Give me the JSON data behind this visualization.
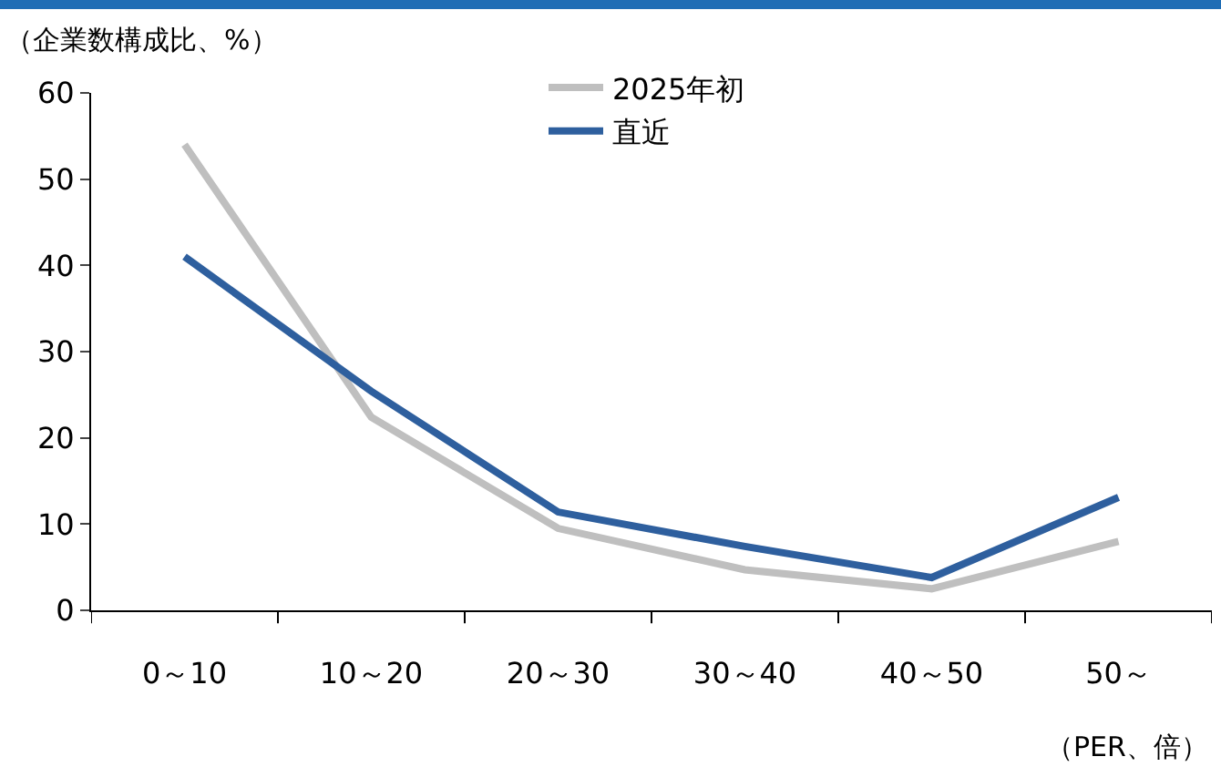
{
  "chart_data": {
    "type": "line",
    "ylabel": "（企業数構成比、%）",
    "xlabel": "（PER、倍）",
    "categories": [
      "0～10",
      "10～20",
      "20～30",
      "30～40",
      "40～50",
      "50～"
    ],
    "series": [
      {
        "name": "2025年初",
        "color": "#bfbfbf",
        "values": [
          54,
          22.4,
          9.5,
          4.7,
          2.5,
          8
        ]
      },
      {
        "name": "直近",
        "color": "#2e5f9e",
        "values": [
          41,
          25.4,
          11.4,
          7.4,
          3.8,
          13.1
        ]
      }
    ],
    "ylim": [
      0,
      60
    ],
    "yticks": [
      0,
      10,
      20,
      30,
      40,
      50,
      60
    ],
    "grid": false,
    "legend": "top",
    "marker": "none",
    "line_style": "solid"
  }
}
